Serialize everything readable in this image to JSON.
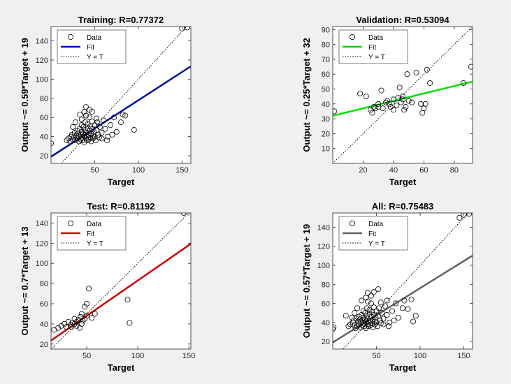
{
  "chart_data": [
    {
      "type": "scatter",
      "title": "Training: R=0.77372",
      "xlabel": "Target",
      "ylabel": "Output ~= 0.59*Target + 19",
      "xlim": [
        0,
        160
      ],
      "ylim": [
        12,
        155
      ],
      "xticks": [
        50,
        100,
        150
      ],
      "yticks": [
        20,
        40,
        60,
        80,
        100,
        120,
        140
      ],
      "legend": [
        "Data",
        "Fit",
        "Y = T"
      ],
      "legend_position": "top-left",
      "fit_color": "#000fa0",
      "fit": {
        "slope": 0.59,
        "intercept": 19
      },
      "points": [
        [
          0,
          33
        ],
        [
          18,
          36
        ],
        [
          20,
          38
        ],
        [
          22,
          35
        ],
        [
          23,
          40
        ],
        [
          24,
          42
        ],
        [
          25,
          37
        ],
        [
          26,
          39
        ],
        [
          27,
          44
        ],
        [
          28,
          36
        ],
        [
          29,
          41
        ],
        [
          30,
          38
        ],
        [
          30,
          46
        ],
        [
          31,
          43
        ],
        [
          32,
          35
        ],
        [
          32,
          40
        ],
        [
          33,
          48
        ],
        [
          34,
          37
        ],
        [
          34,
          42
        ],
        [
          35,
          45
        ],
        [
          35,
          52
        ],
        [
          36,
          39
        ],
        [
          36,
          36
        ],
        [
          37,
          50
        ],
        [
          37,
          43
        ],
        [
          38,
          41
        ],
        [
          38,
          34
        ],
        [
          39,
          47
        ],
        [
          39,
          55
        ],
        [
          40,
          38
        ],
        [
          40,
          44
        ],
        [
          40,
          62
        ],
        [
          41,
          40
        ],
        [
          41,
          36
        ],
        [
          42,
          49
        ],
        [
          42,
          53
        ],
        [
          43,
          42
        ],
        [
          43,
          37
        ],
        [
          44,
          46
        ],
        [
          44,
          60
        ],
        [
          45,
          39
        ],
        [
          45,
          51
        ],
        [
          46,
          43
        ],
        [
          46,
          35
        ],
        [
          47,
          48
        ],
        [
          47,
          56
        ],
        [
          48,
          41
        ],
        [
          48,
          38
        ],
        [
          49,
          45
        ],
        [
          50,
          52
        ],
        [
          50,
          40
        ],
        [
          51,
          36
        ],
        [
          52,
          47
        ],
        [
          53,
          55
        ],
        [
          54,
          42
        ],
        [
          55,
          39
        ],
        [
          56,
          50
        ],
        [
          58,
          44
        ],
        [
          60,
          57
        ],
        [
          62,
          48
        ],
        [
          65,
          40
        ],
        [
          68,
          52
        ],
        [
          72,
          60
        ],
        [
          75,
          45
        ],
        [
          80,
          55
        ],
        [
          82,
          63
        ],
        [
          85,
          62
        ],
        [
          40,
          71
        ],
        [
          33,
          63
        ],
        [
          38,
          66
        ],
        [
          44,
          68
        ],
        [
          47,
          66
        ],
        [
          35,
          58
        ],
        [
          28,
          55
        ],
        [
          25,
          50
        ],
        [
          95,
          47
        ],
        [
          150,
          153
        ],
        [
          156,
          154
        ],
        [
          52,
          59
        ],
        [
          58,
          38
        ],
        [
          64,
          36
        ],
        [
          70,
          42
        ]
      ]
    },
    {
      "type": "scatter",
      "title": "Validation: R=0.53094",
      "xlabel": "Target",
      "ylabel": "Output ~= 0.25*Target + 32",
      "xlim": [
        0,
        92
      ],
      "ylim": [
        0,
        92
      ],
      "xticks": [
        20,
        40,
        60,
        80
      ],
      "yticks": [
        10,
        20,
        30,
        40,
        50,
        60,
        70,
        80,
        90
      ],
      "legend": [
        "Data",
        "Fit",
        "Y = T"
      ],
      "legend_position": "top-left",
      "fit_color": "#00e000",
      "fit": {
        "slope": 0.25,
        "intercept": 32
      },
      "points": [
        [
          1,
          35
        ],
        [
          18,
          47
        ],
        [
          22,
          45
        ],
        [
          25,
          36
        ],
        [
          26,
          34
        ],
        [
          27,
          38
        ],
        [
          28,
          37
        ],
        [
          30,
          40
        ],
        [
          32,
          49
        ],
        [
          33,
          37
        ],
        [
          35,
          41
        ],
        [
          36,
          42
        ],
        [
          38,
          38
        ],
        [
          40,
          43
        ],
        [
          40,
          36
        ],
        [
          42,
          39
        ],
        [
          44,
          51
        ],
        [
          45,
          41
        ],
        [
          46,
          43
        ],
        [
          46,
          45
        ],
        [
          47,
          36
        ],
        [
          48,
          38
        ],
        [
          49,
          60
        ],
        [
          50,
          42
        ],
        [
          52,
          41
        ],
        [
          55,
          61
        ],
        [
          58,
          40
        ],
        [
          59,
          34
        ],
        [
          60,
          37
        ],
        [
          61,
          40
        ],
        [
          62,
          63
        ],
        [
          64,
          54
        ],
        [
          86,
          54
        ],
        [
          91,
          65
        ],
        [
          30,
          38
        ],
        [
          37,
          40
        ],
        [
          43,
          44
        ]
      ]
    },
    {
      "type": "scatter",
      "title": "Test: R=0.81192",
      "xlabel": "Target",
      "ylabel": "Output ~= 0.7*Target + 13",
      "xlim": [
        15,
        152
      ],
      "ylim": [
        15,
        150
      ],
      "xticks": [
        50,
        100,
        150
      ],
      "yticks": [
        20,
        40,
        60,
        80,
        100,
        120,
        140
      ],
      "legend": [
        "Data",
        "Fit",
        "Y = T"
      ],
      "legend_position": "top-left",
      "fit_color": "#d00000",
      "fit": {
        "slope": 0.7,
        "intercept": 13
      },
      "points": [
        [
          18,
          34
        ],
        [
          22,
          36
        ],
        [
          25,
          38
        ],
        [
          28,
          40
        ],
        [
          30,
          37
        ],
        [
          32,
          42
        ],
        [
          34,
          39
        ],
        [
          35,
          37
        ],
        [
          36,
          41
        ],
        [
          38,
          40
        ],
        [
          38,
          45
        ],
        [
          40,
          42
        ],
        [
          40,
          38
        ],
        [
          42,
          44
        ],
        [
          43,
          36
        ],
        [
          44,
          47
        ],
        [
          45,
          40
        ],
        [
          45,
          50
        ],
        [
          46,
          43
        ],
        [
          48,
          45
        ],
        [
          48,
          57
        ],
        [
          50,
          48
        ],
        [
          50,
          60
        ],
        [
          52,
          75
        ],
        [
          55,
          46
        ],
        [
          58,
          50
        ],
        [
          90,
          64
        ],
        [
          92,
          41
        ],
        [
          145,
          150
        ]
      ]
    },
    {
      "type": "scatter",
      "title": "All: R=0.75483",
      "xlabel": "Target",
      "ylabel": "Output ~= 0.57*Target + 19",
      "xlim": [
        0,
        160
      ],
      "ylim": [
        12,
        155
      ],
      "xticks": [
        50,
        100,
        150
      ],
      "yticks": [
        20,
        40,
        60,
        80,
        100,
        120,
        140
      ],
      "legend": [
        "Data",
        "Fit",
        "Y = T"
      ],
      "legend_position": "top-left",
      "fit_color": "#606060",
      "fit": {
        "slope": 0.57,
        "intercept": 19
      },
      "points": [
        [
          0,
          33
        ],
        [
          1,
          35
        ],
        [
          15,
          47
        ],
        [
          18,
          36
        ],
        [
          20,
          38
        ],
        [
          22,
          45
        ],
        [
          23,
          40
        ],
        [
          24,
          42
        ],
        [
          25,
          37
        ],
        [
          26,
          34
        ],
        [
          27,
          44
        ],
        [
          28,
          36
        ],
        [
          29,
          41
        ],
        [
          30,
          38
        ],
        [
          30,
          46
        ],
        [
          31,
          43
        ],
        [
          32,
          35
        ],
        [
          32,
          40
        ],
        [
          33,
          48
        ],
        [
          34,
          37
        ],
        [
          34,
          42
        ],
        [
          35,
          45
        ],
        [
          35,
          52
        ],
        [
          36,
          39
        ],
        [
          36,
          36
        ],
        [
          37,
          50
        ],
        [
          37,
          43
        ],
        [
          38,
          41
        ],
        [
          38,
          34
        ],
        [
          39,
          47
        ],
        [
          39,
          55
        ],
        [
          40,
          38
        ],
        [
          40,
          44
        ],
        [
          40,
          62
        ],
        [
          41,
          40
        ],
        [
          41,
          36
        ],
        [
          42,
          49
        ],
        [
          42,
          53
        ],
        [
          43,
          42
        ],
        [
          43,
          37
        ],
        [
          44,
          46
        ],
        [
          44,
          60
        ],
        [
          45,
          39
        ],
        [
          45,
          51
        ],
        [
          46,
          43
        ],
        [
          46,
          35
        ],
        [
          47,
          48
        ],
        [
          47,
          56
        ],
        [
          48,
          41
        ],
        [
          48,
          38
        ],
        [
          49,
          45
        ],
        [
          50,
          52
        ],
        [
          50,
          40
        ],
        [
          51,
          36
        ],
        [
          52,
          47
        ],
        [
          52,
          75
        ],
        [
          53,
          55
        ],
        [
          54,
          42
        ],
        [
          55,
          39
        ],
        [
          55,
          61
        ],
        [
          56,
          50
        ],
        [
          58,
          44
        ],
        [
          60,
          57
        ],
        [
          62,
          48
        ],
        [
          62,
          63
        ],
        [
          65,
          40
        ],
        [
          68,
          52
        ],
        [
          72,
          60
        ],
        [
          75,
          45
        ],
        [
          80,
          55
        ],
        [
          82,
          63
        ],
        [
          86,
          54
        ],
        [
          90,
          64
        ],
        [
          92,
          41
        ],
        [
          95,
          47
        ],
        [
          40,
          71
        ],
        [
          33,
          63
        ],
        [
          38,
          66
        ],
        [
          44,
          68
        ],
        [
          47,
          72
        ],
        [
          28,
          55
        ],
        [
          25,
          50
        ],
        [
          145,
          150
        ],
        [
          150,
          153
        ],
        [
          156,
          154
        ],
        [
          58,
          38
        ],
        [
          64,
          36
        ],
        [
          70,
          42
        ]
      ]
    }
  ]
}
